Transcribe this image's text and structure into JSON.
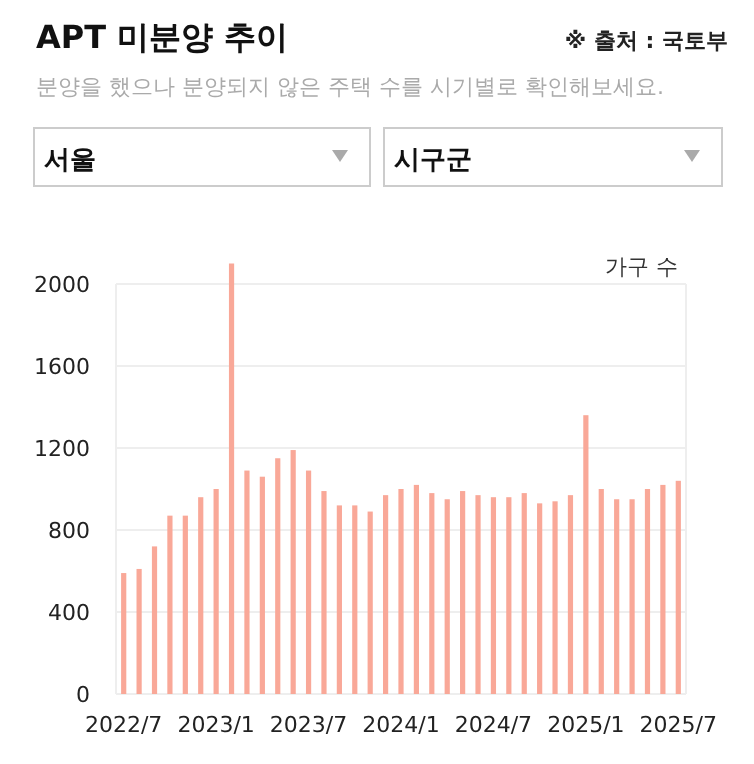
{
  "chart_data": {
    "type": "bar",
    "title": "APT 미분양 추이",
    "subtitle": "분양을 했으나 분양되지 않은 주택 수를 시기별로 확인해보세요.",
    "ylabel": "가구 수",
    "annotations": [
      "※ 출처 : 국토부",
      "서울",
      "시구군"
    ],
    "categories": [
      "2022/7",
      null,
      null,
      null,
      null,
      null,
      "2023/1",
      null,
      null,
      null,
      null,
      null,
      "2023/7",
      null,
      null,
      null,
      null,
      null,
      "2024/1",
      null,
      null,
      null,
      null,
      null,
      "2024/7",
      null,
      null,
      null,
      null,
      null,
      "2025/1",
      null,
      null,
      null,
      null,
      null,
      "2025/7"
    ],
    "values": [
      590,
      610,
      720,
      870,
      870,
      960,
      1000,
      2100,
      1090,
      1060,
      1150,
      1190,
      1090,
      990,
      920,
      920,
      890,
      970,
      1000,
      1020,
      980,
      950,
      990,
      970,
      960,
      960,
      980,
      930,
      940,
      970,
      1360,
      1000,
      950,
      950,
      1000,
      1020,
      1040
    ],
    "color": "#f9a898",
    "ylim": [
      0,
      2100
    ],
    "yticks": [
      0,
      400,
      800,
      1200,
      1600,
      2000
    ],
    "grid": "y"
  }
}
